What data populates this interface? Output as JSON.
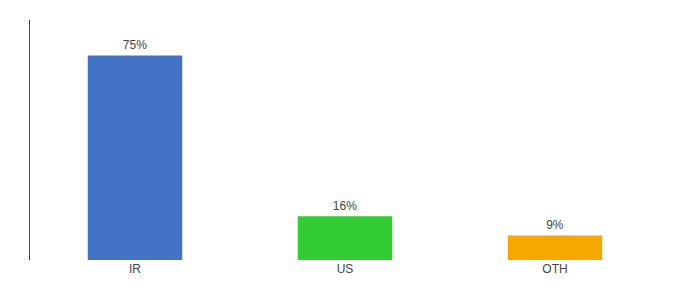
{
  "chart_data": {
    "type": "bar",
    "categories": [
      "IR",
      "US",
      "OTH"
    ],
    "values": [
      75,
      16,
      9
    ],
    "value_labels": [
      "75%",
      "16%",
      "9%"
    ],
    "colors": [
      "#4472c4",
      "#33cc33",
      "#f5a800"
    ],
    "ylim": [
      0,
      88
    ],
    "grid": false,
    "data_labels": true,
    "tick_labels": "x"
  }
}
